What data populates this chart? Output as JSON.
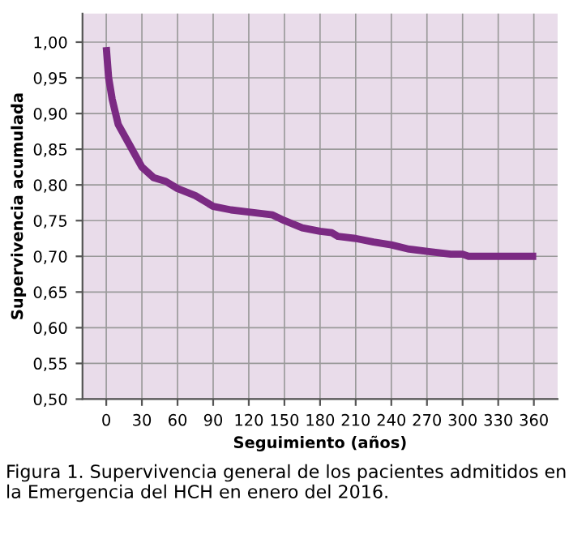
{
  "chart_data": {
    "type": "line",
    "xlabel": "Seguimiento (años)",
    "ylabel": "Supervivencia acumulada",
    "x": [
      0,
      2,
      5,
      10,
      20,
      30,
      40,
      50,
      60,
      75,
      90,
      105,
      120,
      140,
      150,
      165,
      180,
      190,
      195,
      210,
      225,
      240,
      255,
      270,
      290,
      300,
      305,
      330,
      362
    ],
    "series": [
      {
        "color": "#7b2a83",
        "values": [
          0.993,
          0.95,
          0.92,
          0.885,
          0.855,
          0.825,
          0.81,
          0.805,
          0.795,
          0.785,
          0.77,
          0.765,
          0.762,
          0.758,
          0.75,
          0.74,
          0.735,
          0.733,
          0.728,
          0.725,
          0.72,
          0.716,
          0.71,
          0.707,
          0.703,
          0.703,
          0.7,
          0.7,
          0.7
        ]
      }
    ],
    "xlim": [
      -20,
      380
    ],
    "ylim": [
      0.5,
      1.04
    ],
    "xticks": [
      0,
      30,
      60,
      90,
      120,
      150,
      180,
      210,
      240,
      270,
      300,
      330,
      360
    ],
    "yticks": [
      {
        "value": 0.5,
        "label": "0,50"
      },
      {
        "value": 0.55,
        "label": "0,55"
      },
      {
        "value": 0.6,
        "label": "0,60"
      },
      {
        "value": 0.65,
        "label": "0,65"
      },
      {
        "value": 0.7,
        "label": "0,70"
      },
      {
        "value": 0.75,
        "label": "0,75"
      },
      {
        "value": 0.8,
        "label": "0,80"
      },
      {
        "value": 0.85,
        "label": "0,85"
      },
      {
        "value": 0.9,
        "label": "0,90"
      },
      {
        "value": 0.95,
        "label": "0,95"
      },
      {
        "value": 1.0,
        "label": "1,00"
      }
    ],
    "grid": true,
    "marker": "none",
    "line_style": "solid",
    "annotations": [
      "Figura 1. Supervivencia general de los pacientes admitidos en la Emergencia del HCH en enero del 2016."
    ]
  }
}
